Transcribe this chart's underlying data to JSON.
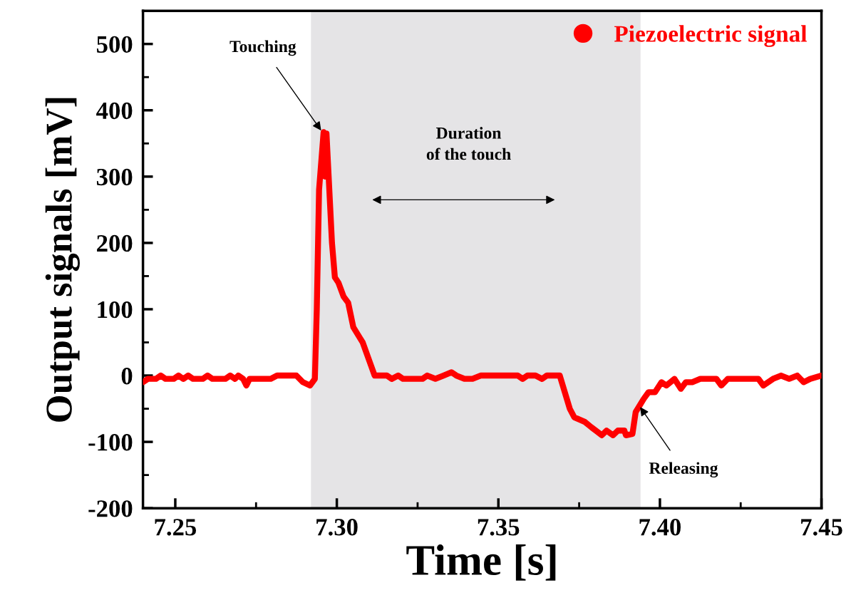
{
  "chart_data": {
    "type": "line",
    "xlabel": "Time [s]",
    "ylabel": "Output signals [mV]",
    "xlim": [
      7.24,
      7.45
    ],
    "xticks": [
      7.25,
      {
        "value": 7.3,
        "label": "7.30"
      },
      7.35,
      {
        "value": 7.4,
        "label": "7.40"
      },
      7.45
    ],
    "ylim": [
      -200,
      550
    ],
    "yticks": [
      -200,
      -100,
      0,
      100,
      200,
      300,
      400,
      500
    ],
    "legend": "top right",
    "marker": "none",
    "line_style": "solid",
    "grid": false,
    "bands": [
      {
        "axis": "x",
        "from": 7.292,
        "to": 7.394,
        "color": "#e5e4e6"
      }
    ],
    "annotations": [
      {
        "text": "Touching",
        "x": 7.2955,
        "y": 367
      },
      {
        "text": "Releasing",
        "x": 7.3935,
        "y": -45
      },
      "Duration\nof the touch"
    ],
    "series": [
      {
        "name": "Piezoelectric signal",
        "color": "#ff0000",
        "x": [
          7.24,
          7.2415,
          7.244,
          7.2455,
          7.247,
          7.2495,
          7.251,
          7.2525,
          7.254,
          7.2555,
          7.2585,
          7.26,
          7.2615,
          7.2655,
          7.267,
          7.2685,
          7.2695,
          7.271,
          7.272,
          7.273,
          7.2795,
          7.2815,
          7.2875,
          7.2895,
          7.2917,
          7.2932,
          7.2938,
          7.2945,
          7.2959,
          7.2963,
          7.2968,
          7.2985,
          7.2994,
          7.3005,
          7.3021,
          7.3035,
          7.3051,
          7.308,
          7.3117,
          7.3155,
          7.317,
          7.319,
          7.3205,
          7.3265,
          7.328,
          7.3305,
          7.333,
          7.3355,
          7.337,
          7.3395,
          7.342,
          7.3445,
          7.356,
          7.3575,
          7.359,
          7.3615,
          7.3635,
          7.365,
          7.369,
          7.3721,
          7.3735,
          7.3768,
          7.3788,
          7.3807,
          7.382,
          7.3835,
          7.3855,
          7.387,
          7.389,
          7.3895,
          7.3915,
          7.3925,
          7.395,
          7.3965,
          7.3985,
          7.4005,
          7.402,
          7.4045,
          7.4065,
          7.408,
          7.41,
          7.4125,
          7.4175,
          7.419,
          7.421,
          7.4305,
          7.432,
          7.435,
          7.4375,
          7.44,
          7.4425,
          7.4445,
          7.4465,
          7.45
        ],
        "values": [
          -10,
          -5,
          -5,
          0,
          -5,
          -5,
          0,
          -5,
          0,
          -5,
          -5,
          0,
          -5,
          -5,
          0,
          -5,
          0,
          -5,
          -15,
          -5,
          -5,
          0,
          0,
          -10,
          -15,
          -5,
          100,
          280,
          367,
          300,
          365,
          200,
          148,
          140,
          119,
          110,
          73,
          50,
          0,
          0,
          -5,
          0,
          -5,
          -5,
          0,
          -5,
          0,
          5,
          0,
          -5,
          -5,
          0,
          0,
          -5,
          0,
          0,
          -5,
          0,
          0,
          -50,
          -63,
          -70,
          -78,
          -85,
          -90,
          -83,
          -90,
          -83,
          -83,
          -90,
          -88,
          -55,
          -35,
          -25,
          -25,
          -10,
          -15,
          -5,
          -20,
          -10,
          -10,
          -5,
          -5,
          -15,
          -5,
          -5,
          -15,
          -5,
          0,
          -5,
          0,
          -10,
          -5,
          0
        ]
      }
    ]
  }
}
